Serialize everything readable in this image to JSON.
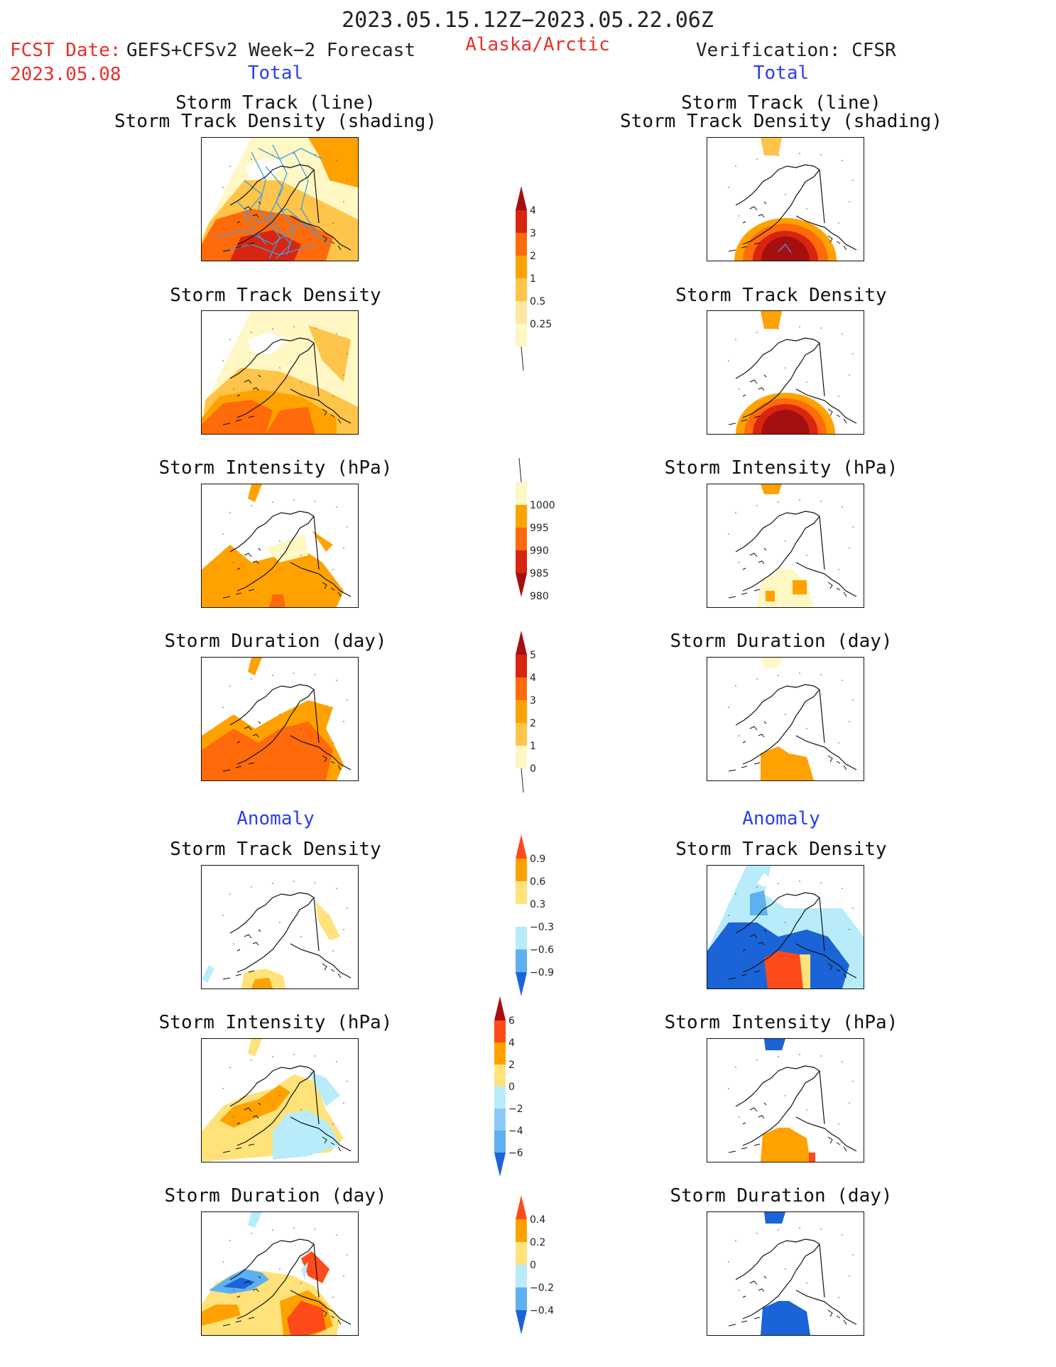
{
  "header": {
    "date_range": "2023.05.15.12Z−2023.05.22.06Z",
    "fcst_label": "FCST Date:",
    "fcst_source": "GEFS+CFSv2 Week−2 Forecast",
    "fcst_date": "2023.05.08",
    "region": "Alaska/Arctic",
    "verification": "Verification: CFSR"
  },
  "sections": {
    "total_left": "Total",
    "total_right": "Total",
    "anomaly_left": "Anomaly",
    "anomaly_right": "Anomaly"
  },
  "panels": {
    "track_line_1": "Storm Track (line)",
    "track_line_2": "Storm Track Density (shading)",
    "density": "Storm Track Density",
    "intensity": "Storm Intensity (hPa)",
    "duration": "Storm Duration (day)"
  },
  "colorbars": {
    "density_total": {
      "ticks": [
        "4",
        "3",
        "2",
        "1",
        "0.5",
        "0.25"
      ],
      "colors": [
        "#a50f0f",
        "#d8250f",
        "#ff6a0a",
        "#ffa200",
        "#ffc44a",
        "#ffe7a0",
        "#fff7c4"
      ]
    },
    "intensity_total": {
      "ticks": [
        "1000",
        "995",
        "990",
        "985",
        "980"
      ],
      "colors": [
        "#fff7c4",
        "#ffa200",
        "#ff6a0a",
        "#d8250f",
        "#a50f0f"
      ]
    },
    "duration_total": {
      "ticks": [
        "5",
        "4",
        "3",
        "2",
        "1",
        "0"
      ],
      "colors": [
        "#a50f0f",
        "#d8250f",
        "#ff6a0a",
        "#ffa200",
        "#ffc44a",
        "#fff7c4"
      ]
    },
    "density_anom": {
      "ticks": [
        "0.9",
        "0.6",
        "0.3",
        "−0.3",
        "−0.6",
        "−0.9"
      ],
      "colors": [
        "#ff4a1a",
        "#ffa200",
        "#ffe27a",
        "#ffffff",
        "#b8ecfa",
        "#5fb0f0",
        "#1a64d8"
      ]
    },
    "intensity_anom": {
      "ticks": [
        "6",
        "4",
        "2",
        "0",
        "−2",
        "−4",
        "−6"
      ],
      "colors": [
        "#a50f0f",
        "#ff4a1a",
        "#ffa200",
        "#ffe27a",
        "#b8ecfa",
        "#8ccaf5",
        "#5fb0f0",
        "#1a64d8"
      ]
    },
    "duration_anom": {
      "ticks": [
        "0.4",
        "0.2",
        "0",
        "−0.2",
        "−0.4"
      ],
      "colors": [
        "#ff4a1a",
        "#ffa200",
        "#ffe27a",
        "#b8ecfa",
        "#5fb0f0",
        "#1a64d8"
      ]
    }
  }
}
